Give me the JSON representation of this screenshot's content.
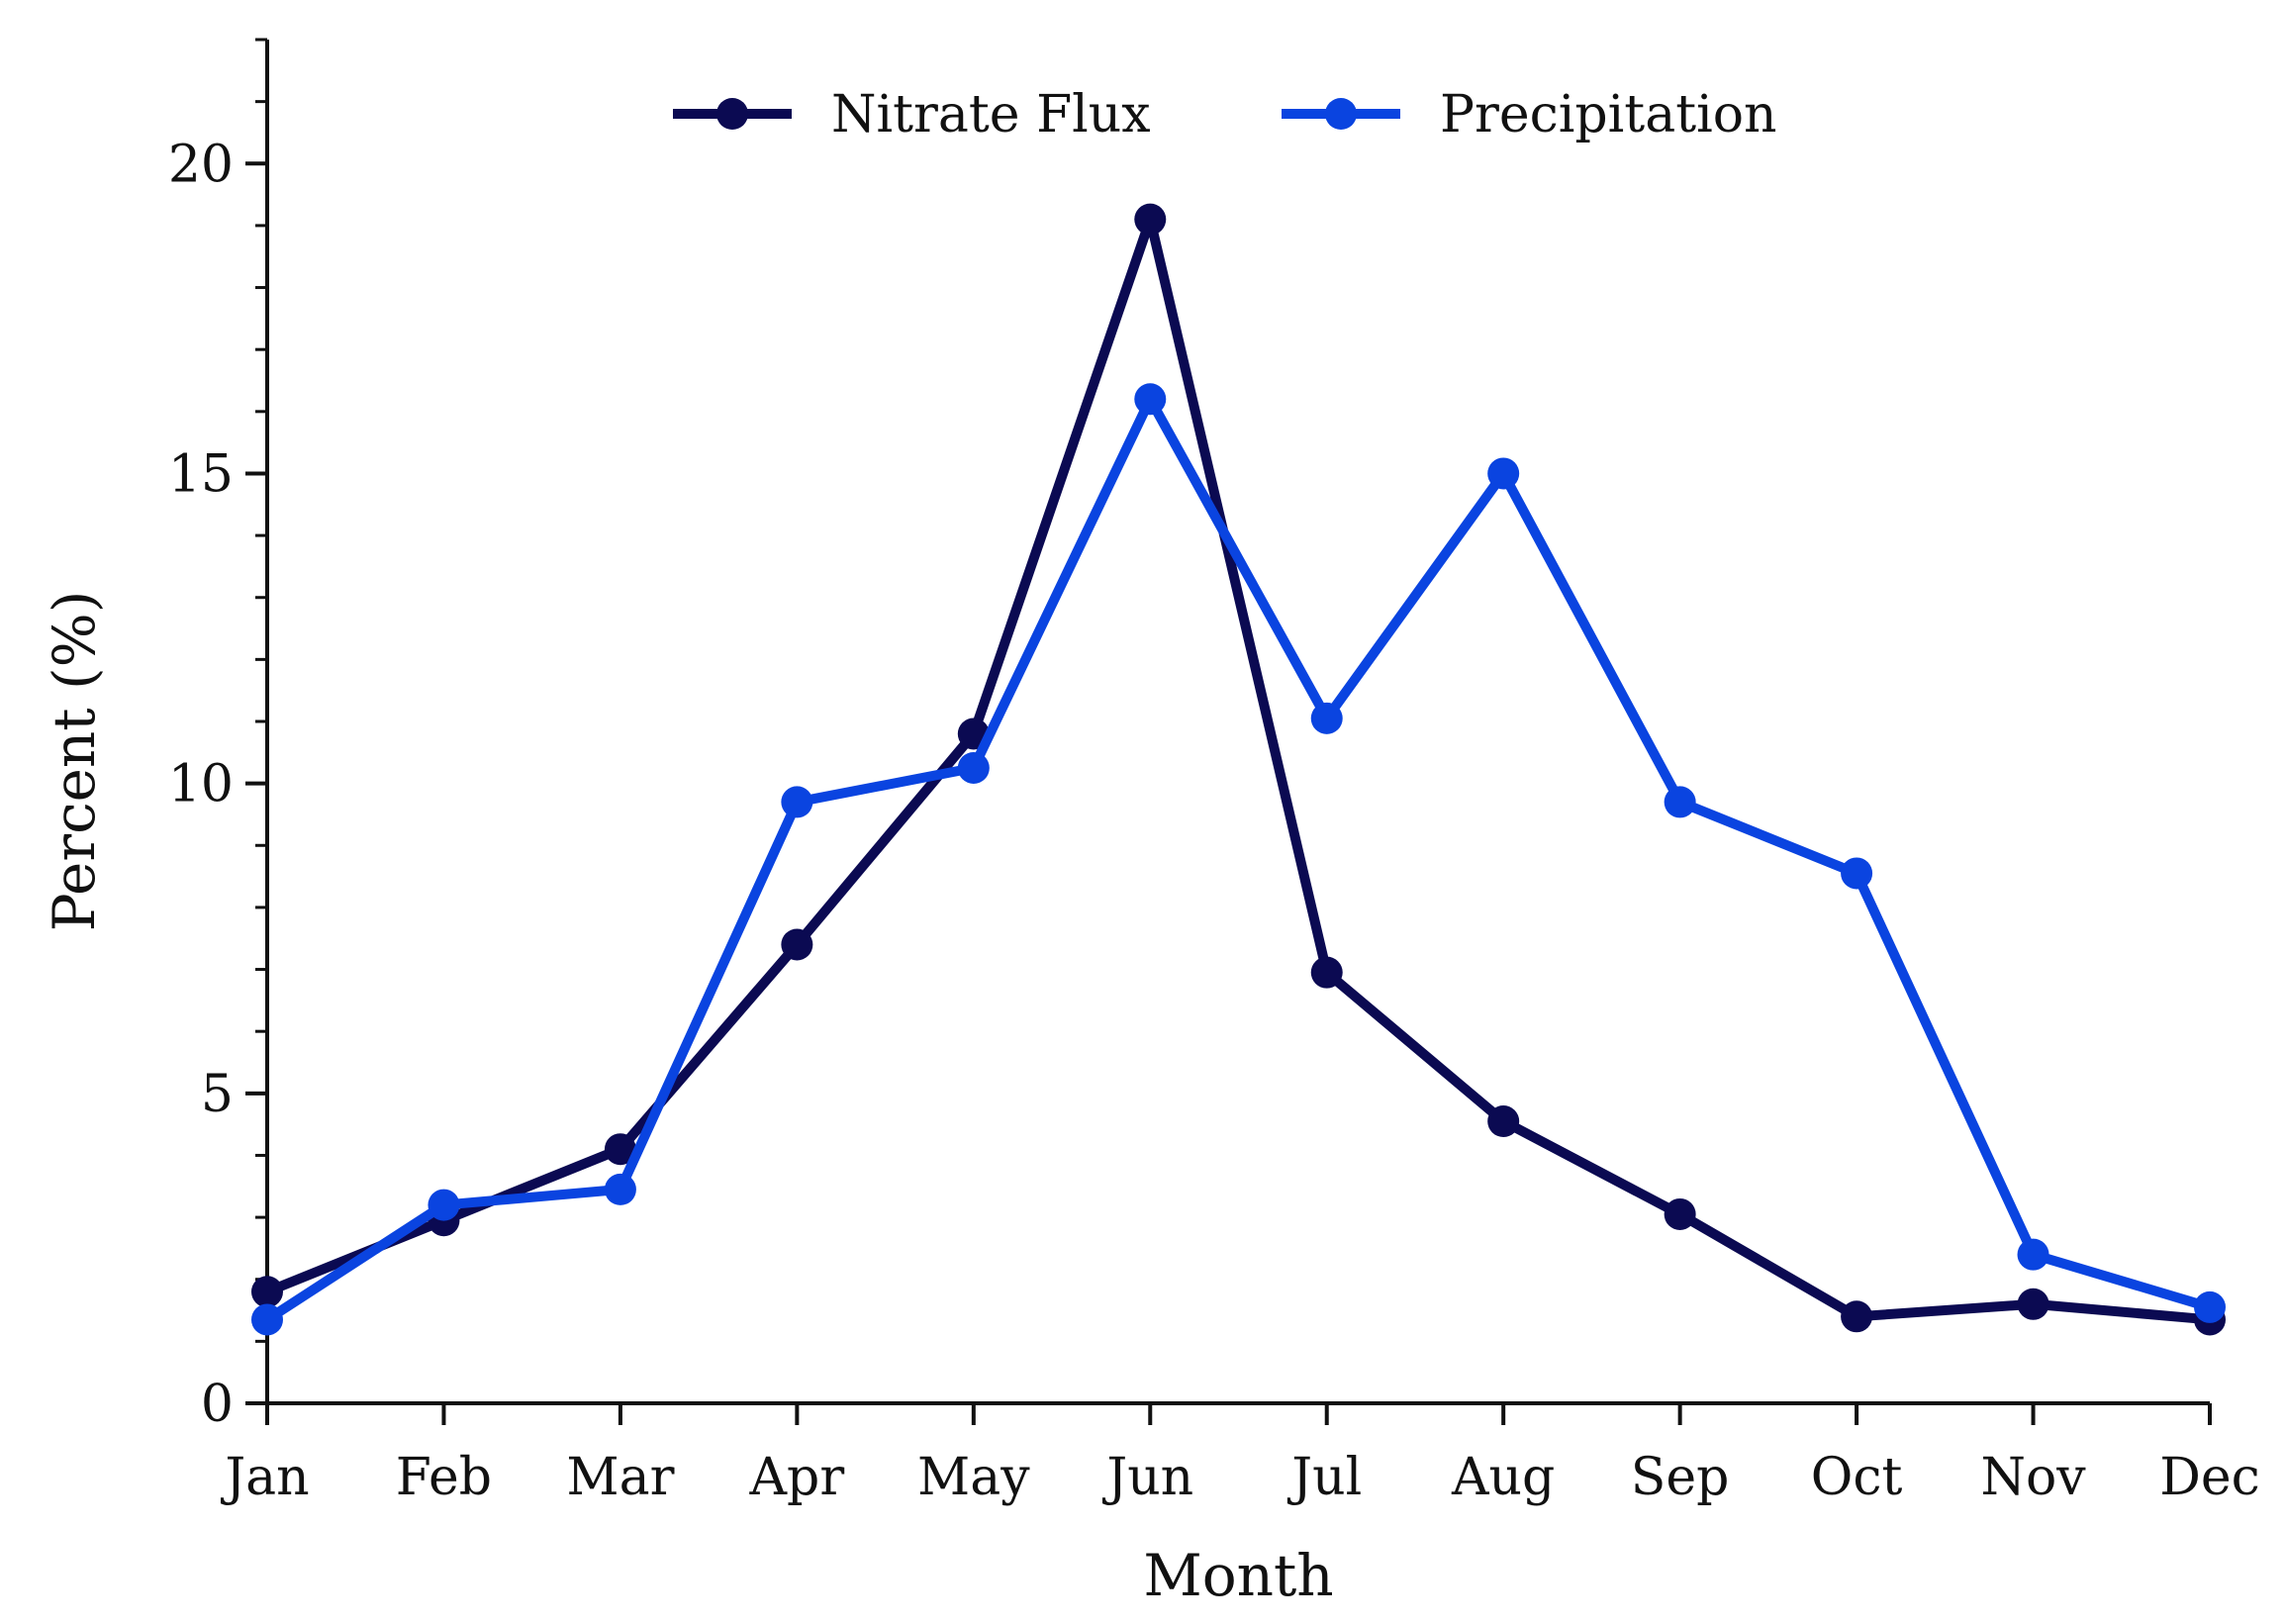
{
  "chart_data": {
    "type": "line",
    "title": "",
    "xlabel": "Month",
    "ylabel": "Percent (%)",
    "categories": [
      "Jan",
      "Feb",
      "Mar",
      "Apr",
      "May",
      "Jun",
      "Jul",
      "Aug",
      "Sep",
      "Oct",
      "Nov",
      "Dec"
    ],
    "ylim": [
      0,
      22
    ],
    "yticks": [
      "0",
      "5",
      "10",
      "15",
      "20"
    ],
    "yminor_step": 1,
    "grid": false,
    "legend_position": "top-center",
    "series": [
      {
        "name": "Nitrate Flux",
        "color": "#0b0a52",
        "values": [
          1.8,
          2.95,
          4.1,
          7.4,
          10.8,
          19.1,
          6.95,
          4.55,
          3.05,
          1.4,
          1.6,
          1.35
        ]
      },
      {
        "name": "Precipitation",
        "color": "#0a44e0",
        "values": [
          1.35,
          3.2,
          3.45,
          9.7,
          10.25,
          16.2,
          11.05,
          15.0,
          9.7,
          8.55,
          2.4,
          1.55
        ]
      }
    ]
  }
}
